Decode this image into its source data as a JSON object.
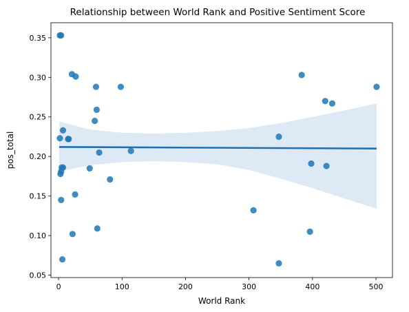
{
  "chart_data": {
    "type": "scatter",
    "title": "Relationship between World Rank and Positive Sentiment Score",
    "xlabel": "World Rank",
    "ylabel": "pos_total",
    "xlim": [
      -12,
      526
    ],
    "ylim": [
      0.047,
      0.369
    ],
    "xticks": [
      0,
      100,
      200,
      300,
      400,
      500
    ],
    "xtick_labels": [
      "0",
      "100",
      "200",
      "300",
      "400",
      "500"
    ],
    "yticks": [
      0.05,
      0.1,
      0.15,
      0.2,
      0.25,
      0.3,
      0.35
    ],
    "ytick_labels": [
      "0.05",
      "0.10",
      "0.15",
      "0.20",
      "0.25",
      "0.30",
      "0.35"
    ],
    "grid": false,
    "point_color": "#1f77b4",
    "band_color": "#c6dbef",
    "line_color": "#1f6fb0",
    "points": [
      {
        "x": 2,
        "y": 0.353
      },
      {
        "x": 4,
        "y": 0.353
      },
      {
        "x": 21,
        "y": 0.304
      },
      {
        "x": 27,
        "y": 0.301
      },
      {
        "x": 59,
        "y": 0.288
      },
      {
        "x": 98,
        "y": 0.288
      },
      {
        "x": 60,
        "y": 0.259
      },
      {
        "x": 57,
        "y": 0.245
      },
      {
        "x": 7,
        "y": 0.233
      },
      {
        "x": 2,
        "y": 0.223
      },
      {
        "x": 15,
        "y": 0.222
      },
      {
        "x": 16,
        "y": 0.222
      },
      {
        "x": 64,
        "y": 0.205
      },
      {
        "x": 114,
        "y": 0.207
      },
      {
        "x": 5,
        "y": 0.186
      },
      {
        "x": 7,
        "y": 0.186
      },
      {
        "x": 49,
        "y": 0.185
      },
      {
        "x": 4,
        "y": 0.181
      },
      {
        "x": 3,
        "y": 0.178
      },
      {
        "x": 81,
        "y": 0.171
      },
      {
        "x": 4,
        "y": 0.145
      },
      {
        "x": 26,
        "y": 0.152
      },
      {
        "x": 61,
        "y": 0.109
      },
      {
        "x": 22,
        "y": 0.102
      },
      {
        "x": 6,
        "y": 0.07
      },
      {
        "x": 383,
        "y": 0.303
      },
      {
        "x": 501,
        "y": 0.288
      },
      {
        "x": 420,
        "y": 0.27
      },
      {
        "x": 431,
        "y": 0.267
      },
      {
        "x": 347,
        "y": 0.225
      },
      {
        "x": 398,
        "y": 0.191
      },
      {
        "x": 422,
        "y": 0.188
      },
      {
        "x": 307,
        "y": 0.132
      },
      {
        "x": 396,
        "y": 0.105
      },
      {
        "x": 347,
        "y": 0.065
      }
    ],
    "regression": {
      "x": [
        1,
        501
      ],
      "y": [
        0.212,
        0.21
      ]
    },
    "confidence_band": {
      "x": [
        1,
        50,
        100,
        150,
        200,
        250,
        300,
        350,
        400,
        450,
        501
      ],
      "upper": [
        0.244,
        0.234,
        0.23,
        0.229,
        0.23,
        0.232,
        0.236,
        0.242,
        0.25,
        0.258,
        0.267
      ],
      "lower": [
        0.181,
        0.189,
        0.193,
        0.194,
        0.193,
        0.19,
        0.183,
        0.172,
        0.16,
        0.147,
        0.134
      ]
    }
  }
}
